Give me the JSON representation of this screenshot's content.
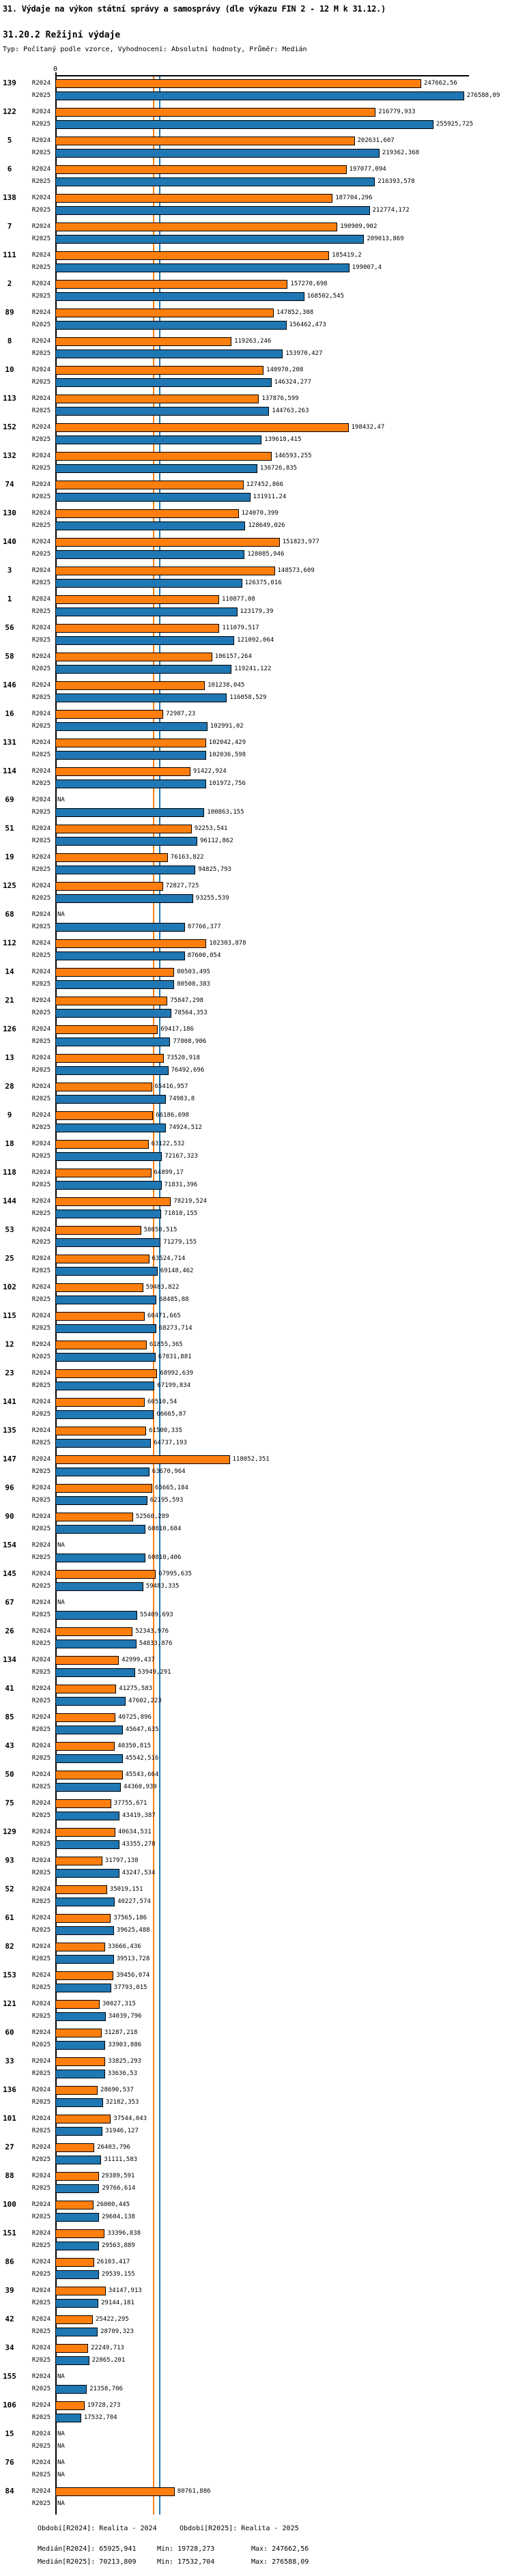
{
  "header": {
    "title": "31. Výdaje na výkon státní správy a samosprávy (dle výkazu FIN 2 - 12 M k 31.12.)",
    "subtitle": "31.20.2 Režijní výdaje",
    "meta": "Typ: Počítaný podle vzorce, Vyhodnocení: Absolutní hodnoty, Průměr: Medián"
  },
  "axis": {
    "zero_label": "0"
  },
  "chart_data": {
    "type": "bar",
    "orientation": "horizontal",
    "x_axis": {
      "min": 0,
      "tick_labels": [
        "0"
      ]
    },
    "series": [
      {
        "name": "R2024",
        "color": "#ff7f0e",
        "period": "Realita - 2024",
        "median": 65925.941,
        "min": 19728.273,
        "max": 247662.56
      },
      {
        "name": "R2025",
        "color": "#1f77b4",
        "period": "Realita - 2025",
        "median": 70213.809,
        "min": 17532.704,
        "max": 276588.09
      }
    ],
    "na_label": "NA",
    "rows": [
      {
        "id": "139",
        "R2024": "247662,56",
        "R2025": "276588,09"
      },
      {
        "id": "122",
        "R2024": "216779,933",
        "R2025": "255925,725"
      },
      {
        "id": "5",
        "R2024": "202631,607",
        "R2025": "219362,368"
      },
      {
        "id": "6",
        "R2024": "197077,094",
        "R2025": "216393,578"
      },
      {
        "id": "138",
        "R2024": "187704,296",
        "R2025": "212774,172"
      },
      {
        "id": "7",
        "R2024": "190909,902",
        "R2025": "209013,869"
      },
      {
        "id": "111",
        "R2024": "185419,2",
        "R2025": "199007,4"
      },
      {
        "id": "2",
        "R2024": "157270,698",
        "R2025": "168502,545"
      },
      {
        "id": "89",
        "R2024": "147852,308",
        "R2025": "156462,473"
      },
      {
        "id": "8",
        "R2024": "119263,246",
        "R2025": "153970,427"
      },
      {
        "id": "10",
        "R2024": "140970,208",
        "R2025": "146324,277"
      },
      {
        "id": "113",
        "R2024": "137876,599",
        "R2025": "144763,263"
      },
      {
        "id": "152",
        "R2024": "198432,47",
        "R2025": "139618,415"
      },
      {
        "id": "132",
        "R2024": "146593,255",
        "R2025": "136726,835"
      },
      {
        "id": "74",
        "R2024": "127452,866",
        "R2025": "131911,24"
      },
      {
        "id": "130",
        "R2024": "124070,399",
        "R2025": "128649,026"
      },
      {
        "id": "140",
        "R2024": "151823,977",
        "R2025": "128085,946"
      },
      {
        "id": "3",
        "R2024": "148573,609",
        "R2025": "126375,016"
      },
      {
        "id": "1",
        "R2024": "110877,08",
        "R2025": "123179,39"
      },
      {
        "id": "56",
        "R2024": "111079,517",
        "R2025": "121092,064"
      },
      {
        "id": "58",
        "R2024": "106157,264",
        "R2025": "119241,122"
      },
      {
        "id": "146",
        "R2024": "101238,045",
        "R2025": "116058,529"
      },
      {
        "id": "16",
        "R2024": "72987,23",
        "R2025": "102991,02"
      },
      {
        "id": "131",
        "R2024": "102042,429",
        "R2025": "102036,598"
      },
      {
        "id": "114",
        "R2024": "91422,924",
        "R2025": "101972,756"
      },
      {
        "id": "69",
        "R2024": "NA",
        "R2025": "100863,155"
      },
      {
        "id": "51",
        "R2024": "92253,541",
        "R2025": "96112,862"
      },
      {
        "id": "19",
        "R2024": "76163,822",
        "R2025": "94825,793"
      },
      {
        "id": "125",
        "R2024": "72827,725",
        "R2025": "93255,539"
      },
      {
        "id": "68",
        "R2024": "NA",
        "R2025": "87766,377"
      },
      {
        "id": "112",
        "R2024": "102303,878",
        "R2025": "87600,054"
      },
      {
        "id": "14",
        "R2024": "80503,495",
        "R2025": "80508,383"
      },
      {
        "id": "21",
        "R2024": "75847,298",
        "R2025": "78564,353"
      },
      {
        "id": "126",
        "R2024": "69417,186",
        "R2025": "77808,906"
      },
      {
        "id": "13",
        "R2024": "73520,918",
        "R2025": "76492,696"
      },
      {
        "id": "28",
        "R2024": "65416,957",
        "R2025": "74983,8"
      },
      {
        "id": "9",
        "R2024": "66186,698",
        "R2025": "74924,512"
      },
      {
        "id": "18",
        "R2024": "63122,532",
        "R2025": "72167,323"
      },
      {
        "id": "118",
        "R2024": "64899,17",
        "R2025": "71831,396"
      },
      {
        "id": "144",
        "R2024": "78219,524",
        "R2025": "71810,155"
      },
      {
        "id": "53",
        "R2024": "58050,515",
        "R2025": "71279,155"
      },
      {
        "id": "25",
        "R2024": "63524,714",
        "R2025": "69148,462"
      },
      {
        "id": "102",
        "R2024": "59403,822",
        "R2025": "68485,88"
      },
      {
        "id": "115",
        "R2024": "60471,665",
        "R2025": "68273,714"
      },
      {
        "id": "12",
        "R2024": "61855,365",
        "R2025": "67831,881"
      },
      {
        "id": "23",
        "R2024": "68992,639",
        "R2025": "67199,834"
      },
      {
        "id": "141",
        "R2024": "60510,54",
        "R2025": "66665,87"
      },
      {
        "id": "135",
        "R2024": "61500,335",
        "R2025": "64737,193"
      },
      {
        "id": "147",
        "R2024": "118052,351",
        "R2025": "63670,964"
      },
      {
        "id": "96",
        "R2024": "65665,184",
        "R2025": "62195,593"
      },
      {
        "id": "90",
        "R2024": "52560,289",
        "R2025": "60810,684"
      },
      {
        "id": "154",
        "R2024": "NA",
        "R2025": "60810,406"
      },
      {
        "id": "145",
        "R2024": "67995,635",
        "R2025": "59483,335"
      },
      {
        "id": "67",
        "R2024": "NA",
        "R2025": "55409,693"
      },
      {
        "id": "26",
        "R2024": "52343,976",
        "R2025": "54833,876"
      },
      {
        "id": "134",
        "R2024": "42999,437",
        "R2025": "53949,291"
      },
      {
        "id": "41",
        "R2024": "41275,583",
        "R2025": "47602,223"
      },
      {
        "id": "85",
        "R2024": "40725,896",
        "R2025": "45647,635"
      },
      {
        "id": "43",
        "R2024": "40350,815",
        "R2025": "45542,516"
      },
      {
        "id": "50",
        "R2024": "45543,664",
        "R2025": "44360,939"
      },
      {
        "id": "75",
        "R2024": "37755,671",
        "R2025": "43419,387"
      },
      {
        "id": "129",
        "R2024": "40634,531",
        "R2025": "43355,278"
      },
      {
        "id": "93",
        "R2024": "31797,138",
        "R2025": "43247,534"
      },
      {
        "id": "52",
        "R2024": "35019,151",
        "R2025": "40227,574"
      },
      {
        "id": "61",
        "R2024": "37565,186",
        "R2025": "39625,488"
      },
      {
        "id": "82",
        "R2024": "33666,436",
        "R2025": "39513,728"
      },
      {
        "id": "153",
        "R2024": "39456,074",
        "R2025": "37793,015"
      },
      {
        "id": "121",
        "R2024": "30027,315",
        "R2025": "34039,796"
      },
      {
        "id": "60",
        "R2024": "31287,218",
        "R2025": "33903,886"
      },
      {
        "id": "33",
        "R2024": "33825,293",
        "R2025": "33636,53"
      },
      {
        "id": "136",
        "R2024": "28690,537",
        "R2025": "32182,353"
      },
      {
        "id": "101",
        "R2024": "37544,043",
        "R2025": "31946,127"
      },
      {
        "id": "27",
        "R2024": "26403,796",
        "R2025": "31111,583"
      },
      {
        "id": "88",
        "R2024": "29389,591",
        "R2025": "29766,614"
      },
      {
        "id": "100",
        "R2024": "26000,445",
        "R2025": "29604,138"
      },
      {
        "id": "151",
        "R2024": "33396,838",
        "R2025": "29563,889"
      },
      {
        "id": "86",
        "R2024": "26103,417",
        "R2025": "29539,155"
      },
      {
        "id": "39",
        "R2024": "34147,913",
        "R2025": "29144,181"
      },
      {
        "id": "42",
        "R2024": "25422,295",
        "R2025": "28709,323"
      },
      {
        "id": "34",
        "R2024": "22249,713",
        "R2025": "22865,201"
      },
      {
        "id": "155",
        "R2024": "NA",
        "R2025": "21358,706"
      },
      {
        "id": "106",
        "R2024": "19728,273",
        "R2025": "17532,704"
      },
      {
        "id": "15",
        "R2024": "NA",
        "R2025": "NA"
      },
      {
        "id": "76",
        "R2024": "NA",
        "R2025": "NA"
      },
      {
        "id": "84",
        "R2024": "80761,886",
        "R2025": "NA"
      }
    ]
  },
  "footer": {
    "period_r2024": "Období[R2024]: Realita - 2024",
    "period_r2025": "Období[R2025]: Realita - 2025",
    "median_r2024": "Medián[R2024]: 65925,941",
    "min_r2024": "Min: 19728,273",
    "max_r2024": "Max: 247662,56",
    "median_r2025": "Medián[R2025]: 70213,809",
    "min_r2025": "Min: 17532,704",
    "max_r2025": "Max: 276588,09"
  }
}
